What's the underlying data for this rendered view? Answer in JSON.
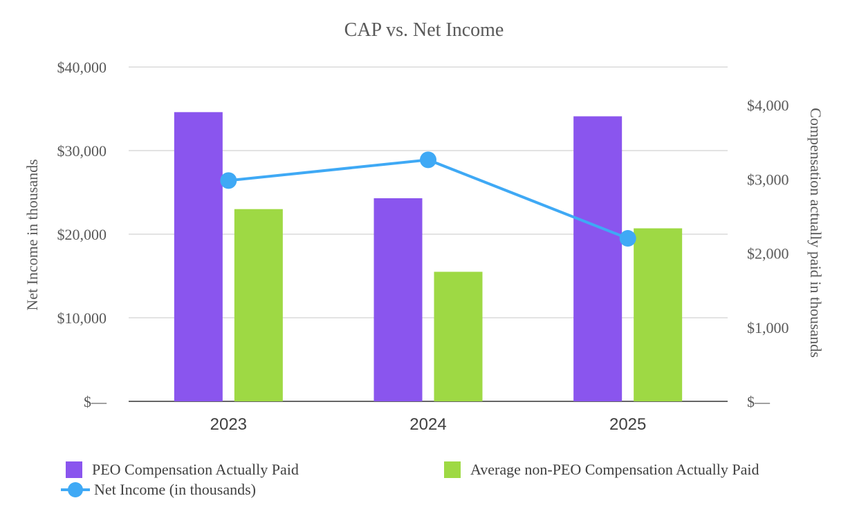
{
  "chart_data": {
    "type": "bar",
    "title": "CAP vs. Net Income",
    "categories": [
      "2023",
      "2024",
      "2025"
    ],
    "left_axis": {
      "label": "Net Income in thousands",
      "ticks": [
        "$—",
        "$10,000",
        "$20,000",
        "$30,000",
        "$40,000"
      ],
      "range": [
        0,
        40000
      ]
    },
    "right_axis": {
      "label": "Compensation actually paid in thousands",
      "ticks": [
        "$—",
        "$1,000",
        "$2,000",
        "$3,000",
        "$4,000"
      ],
      "range": [
        0,
        4000
      ]
    },
    "grid": true,
    "legend_position": "bottom",
    "series": [
      {
        "name": "PEO Compensation Actually Paid",
        "type": "bar",
        "axis": "left",
        "color": "#8a55ee",
        "values": [
          34600,
          24300,
          34100
        ]
      },
      {
        "name": "Average non-PEO Compensation Actually Paid",
        "type": "bar",
        "axis": "left",
        "color": "#9ed944",
        "values": [
          23000,
          15500,
          20700
        ]
      },
      {
        "name": "Net Income (in thousands)",
        "type": "line",
        "axis": "right",
        "color": "#3fa9f5",
        "values": [
          2980,
          3260,
          2200
        ]
      }
    ]
  }
}
